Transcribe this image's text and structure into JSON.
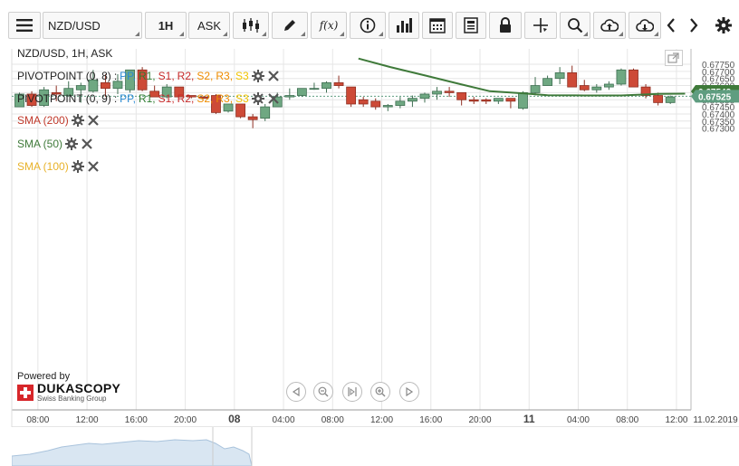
{
  "toolbar": {
    "symbol": "NZD/USD",
    "timeframe": "1H",
    "price_side": "ASK",
    "fx_label": "f(x)"
  },
  "chart_title": "NZD/USD, 1H, ASK",
  "legend": [
    {
      "label": "PIVOTPOINT (0, 8)",
      "color": "#222222",
      "levels": [
        {
          "t": "PP",
          "c": "#2a8ad4"
        },
        {
          "t": "R1",
          "c": "#2e7d32"
        },
        {
          "t": "S1",
          "c": "#c62828"
        },
        {
          "t": "R2",
          "c": "#c62828"
        },
        {
          "t": "S2",
          "c": "#ef8c00"
        },
        {
          "t": "R3",
          "c": "#ef8c00"
        },
        {
          "t": "S3",
          "c": "#f2c400"
        }
      ]
    },
    {
      "label": "PIVOTPOINT (0, 9)",
      "color": "#222222",
      "levels": [
        {
          "t": "PP",
          "c": "#2a8ad4"
        },
        {
          "t": "R1",
          "c": "#2e7d32"
        },
        {
          "t": "S1",
          "c": "#c62828"
        },
        {
          "t": "R2",
          "c": "#c62828"
        },
        {
          "t": "S2",
          "c": "#ef8c00"
        },
        {
          "t": "R3",
          "c": "#ef8c00"
        },
        {
          "t": "S3",
          "c": "#f2c400"
        }
      ]
    },
    {
      "label": "SMA (200)",
      "color": "#c0392b",
      "levels": []
    },
    {
      "label": "SMA (50)",
      "color": "#3f7a3a",
      "levels": []
    },
    {
      "label": "SMA (100)",
      "color": "#e8b22a",
      "levels": []
    }
  ],
  "branding": {
    "powered_by": "Powered by",
    "name": "DUKASCOPY",
    "sub": "Swiss Banking Group"
  },
  "colors": {
    "bull": "#6fa882",
    "bear": "#cd4a37",
    "sma50": "#3f7a3a",
    "grid": "#e6e6e6",
    "price_tag_green": "#3f7a3a",
    "price_tag_teal": "#5f9d80"
  },
  "chart_data": {
    "type": "candlestick",
    "symbol": "NZD/USD",
    "interval": "1H",
    "ylim": [
      0.6726,
      0.6779
    ],
    "y_ticks": [
      "0.67750",
      "0.67700",
      "0.67650",
      "0.67600",
      "0.67550",
      "0.67500",
      "0.67450",
      "0.67400",
      "0.67350",
      "0.67300"
    ],
    "y_tick_values": [
      0.6775,
      0.677,
      0.6765,
      0.676,
      0.6755,
      0.675,
      0.6745,
      0.674,
      0.6735,
      0.673
    ],
    "x_labels": [
      {
        "t": "08:00",
        "bold": false,
        "i": 1.5
      },
      {
        "t": "12:00",
        "bold": false,
        "i": 5.5
      },
      {
        "t": "16:00",
        "bold": false,
        "i": 9.5
      },
      {
        "t": "20:00",
        "bold": false,
        "i": 13.5
      },
      {
        "t": "08",
        "bold": true,
        "i": 17.5
      },
      {
        "t": "04:00",
        "bold": false,
        "i": 21.5
      },
      {
        "t": "08:00",
        "bold": false,
        "i": 25.5
      },
      {
        "t": "12:00",
        "bold": false,
        "i": 29.5
      },
      {
        "t": "16:00",
        "bold": false,
        "i": 33.5
      },
      {
        "t": "20:00",
        "bold": false,
        "i": 37.5
      },
      {
        "t": "11",
        "bold": true,
        "i": 41.5
      },
      {
        "t": "04:00",
        "bold": false,
        "i": 45.5
      },
      {
        "t": "08:00",
        "bold": false,
        "i": 49.5
      },
      {
        "t": "12:00",
        "bold": false,
        "i": 53.5
      }
    ],
    "end_date": "11.02.2019",
    "last_price": "0.67525",
    "sma_price": "0.67543",
    "candles": [
      {
        "o": 0.6745,
        "h": 0.6755,
        "l": 0.6745,
        "c": 0.6754
      },
      {
        "o": 0.6754,
        "h": 0.6756,
        "l": 0.6745,
        "c": 0.6746
      },
      {
        "o": 0.6746,
        "h": 0.6759,
        "l": 0.6745,
        "c": 0.6757
      },
      {
        "o": 0.6755,
        "h": 0.676,
        "l": 0.6749,
        "c": 0.6754
      },
      {
        "o": 0.6753,
        "h": 0.6763,
        "l": 0.6752,
        "c": 0.6758
      },
      {
        "o": 0.6757,
        "h": 0.6762,
        "l": 0.6748,
        "c": 0.676
      },
      {
        "o": 0.6756,
        "h": 0.6771,
        "l": 0.6755,
        "c": 0.6764
      },
      {
        "o": 0.6762,
        "h": 0.6768,
        "l": 0.6752,
        "c": 0.6758
      },
      {
        "o": 0.6758,
        "h": 0.6768,
        "l": 0.6754,
        "c": 0.6763
      },
      {
        "o": 0.6757,
        "h": 0.6771,
        "l": 0.6755,
        "c": 0.6771
      },
      {
        "o": 0.6771,
        "h": 0.6773,
        "l": 0.6756,
        "c": 0.6757
      },
      {
        "o": 0.6756,
        "h": 0.676,
        "l": 0.6752,
        "c": 0.6752
      },
      {
        "o": 0.6752,
        "h": 0.6761,
        "l": 0.6751,
        "c": 0.6759
      },
      {
        "o": 0.6759,
        "h": 0.6759,
        "l": 0.6752,
        "c": 0.6752
      },
      {
        "o": 0.6753,
        "h": 0.6753,
        "l": 0.6751,
        "c": 0.6752
      },
      {
        "o": 0.6752,
        "h": 0.6752,
        "l": 0.6751,
        "c": 0.6751
      },
      {
        "o": 0.6753,
        "h": 0.6754,
        "l": 0.674,
        "c": 0.6741
      },
      {
        "o": 0.6742,
        "h": 0.6747,
        "l": 0.6741,
        "c": 0.6747
      },
      {
        "o": 0.6747,
        "h": 0.6747,
        "l": 0.6737,
        "c": 0.6738
      },
      {
        "o": 0.6738,
        "h": 0.674,
        "l": 0.673,
        "c": 0.6736
      },
      {
        "o": 0.6737,
        "h": 0.6747,
        "l": 0.6735,
        "c": 0.6745
      },
      {
        "o": 0.6745,
        "h": 0.6755,
        "l": 0.6745,
        "c": 0.6752
      },
      {
        "o": 0.6752,
        "h": 0.6758,
        "l": 0.675,
        "c": 0.6753
      },
      {
        "o": 0.6753,
        "h": 0.6758,
        "l": 0.6752,
        "c": 0.6758
      },
      {
        "o": 0.6758,
        "h": 0.6762,
        "l": 0.6757,
        "c": 0.6758
      },
      {
        "o": 0.6758,
        "h": 0.6763,
        "l": 0.6755,
        "c": 0.6762
      },
      {
        "o": 0.6762,
        "h": 0.6767,
        "l": 0.6758,
        "c": 0.676
      },
      {
        "o": 0.6759,
        "h": 0.6759,
        "l": 0.6745,
        "c": 0.6747
      },
      {
        "o": 0.675,
        "h": 0.6752,
        "l": 0.6745,
        "c": 0.6747
      },
      {
        "o": 0.6749,
        "h": 0.6751,
        "l": 0.6743,
        "c": 0.6745
      },
      {
        "o": 0.6745,
        "h": 0.6747,
        "l": 0.6742,
        "c": 0.6746
      },
      {
        "o": 0.6746,
        "h": 0.6752,
        "l": 0.6744,
        "c": 0.6749
      },
      {
        "o": 0.6749,
        "h": 0.6753,
        "l": 0.6745,
        "c": 0.6751
      },
      {
        "o": 0.6751,
        "h": 0.6755,
        "l": 0.6748,
        "c": 0.6754
      },
      {
        "o": 0.6754,
        "h": 0.6759,
        "l": 0.675,
        "c": 0.6756
      },
      {
        "o": 0.6756,
        "h": 0.6759,
        "l": 0.6752,
        "c": 0.6755
      },
      {
        "o": 0.6755,
        "h": 0.6755,
        "l": 0.6746,
        "c": 0.675
      },
      {
        "o": 0.675,
        "h": 0.6752,
        "l": 0.6747,
        "c": 0.6749
      },
      {
        "o": 0.675,
        "h": 0.6751,
        "l": 0.6747,
        "c": 0.6749
      },
      {
        "o": 0.6749,
        "h": 0.6751,
        "l": 0.6747,
        "c": 0.6751
      },
      {
        "o": 0.6751,
        "h": 0.6751,
        "l": 0.6744,
        "c": 0.6749
      },
      {
        "o": 0.6744,
        "h": 0.6756,
        "l": 0.6743,
        "c": 0.6755
      },
      {
        "o": 0.6755,
        "h": 0.6766,
        "l": 0.6753,
        "c": 0.676
      },
      {
        "o": 0.676,
        "h": 0.6767,
        "l": 0.676,
        "c": 0.6765
      },
      {
        "o": 0.6765,
        "h": 0.6773,
        "l": 0.6761,
        "c": 0.6769
      },
      {
        "o": 0.6769,
        "h": 0.6774,
        "l": 0.6759,
        "c": 0.6759
      },
      {
        "o": 0.676,
        "h": 0.6764,
        "l": 0.6756,
        "c": 0.6757
      },
      {
        "o": 0.6757,
        "h": 0.6761,
        "l": 0.6755,
        "c": 0.6759
      },
      {
        "o": 0.6759,
        "h": 0.6763,
        "l": 0.6757,
        "c": 0.6761
      },
      {
        "o": 0.6761,
        "h": 0.6772,
        "l": 0.676,
        "c": 0.6771
      },
      {
        "o": 0.6771,
        "h": 0.6772,
        "l": 0.6759,
        "c": 0.6759
      },
      {
        "o": 0.6759,
        "h": 0.6761,
        "l": 0.6751,
        "c": 0.6753
      },
      {
        "o": 0.6753,
        "h": 0.6755,
        "l": 0.6746,
        "c": 0.6748
      },
      {
        "o": 0.6748,
        "h": 0.6753,
        "l": 0.6747,
        "c": 0.6752
      }
    ],
    "sma50": [
      {
        "i": 27.6,
        "v": 0.6779
      },
      {
        "i": 30.2,
        "v": 0.6773
      },
      {
        "i": 33.1,
        "v": 0.6767
      },
      {
        "i": 35.9,
        "v": 0.6761
      },
      {
        "i": 38.3,
        "v": 0.6756
      },
      {
        "i": 41.1,
        "v": 0.67545
      },
      {
        "i": 43.0,
        "v": 0.67532
      },
      {
        "i": 46.0,
        "v": 0.6753
      },
      {
        "i": 49.0,
        "v": 0.6753
      },
      {
        "i": 52.1,
        "v": 0.67542
      },
      {
        "i": 54.2,
        "v": 0.67543
      }
    ]
  }
}
